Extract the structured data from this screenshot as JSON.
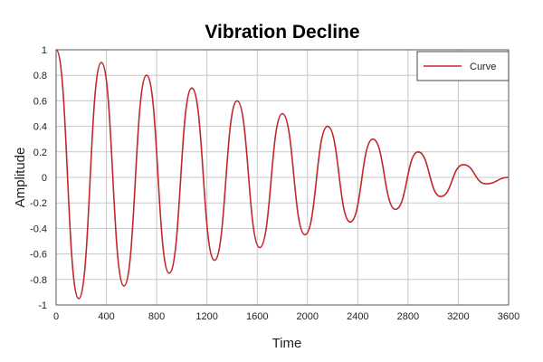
{
  "chart_data": {
    "type": "line",
    "title": "Vibration Decline",
    "xlabel": "Time",
    "ylabel": "Amplitude",
    "xlim": [
      0,
      3600
    ],
    "ylim": [
      -1,
      1
    ],
    "xticks": [
      0,
      400,
      800,
      1200,
      1600,
      2000,
      2400,
      2800,
      3200,
      3600
    ],
    "yticks": [
      1,
      0.8,
      0.6,
      0.4,
      0.2,
      0,
      -0.2,
      -0.4,
      -0.6,
      -0.8,
      -1
    ],
    "ytick_labels": [
      "1",
      "0.8",
      "0.6",
      "0.4",
      "0.2",
      "0",
      "-0.2",
      "-0.4",
      "-0.6",
      "-0.8",
      "-1"
    ],
    "grid": true,
    "legend_position": "top-right",
    "series": [
      {
        "name": "Curve",
        "color": "#c0282a",
        "x": [
          0,
          180,
          360,
          540,
          720,
          900,
          1080,
          1260,
          1440,
          1620,
          1800,
          1980,
          2160,
          2340,
          2520,
          2700,
          2880,
          3060,
          3240,
          3420,
          3600
        ],
        "y": [
          1,
          -0.95,
          0.9,
          -0.85,
          0.8,
          -0.75,
          0.7,
          -0.65,
          0.6,
          -0.55,
          0.5,
          -0.45,
          0.4,
          -0.35,
          0.3,
          -0.25,
          0.2,
          -0.15,
          0.1,
          -0.05,
          0
        ]
      }
    ]
  }
}
